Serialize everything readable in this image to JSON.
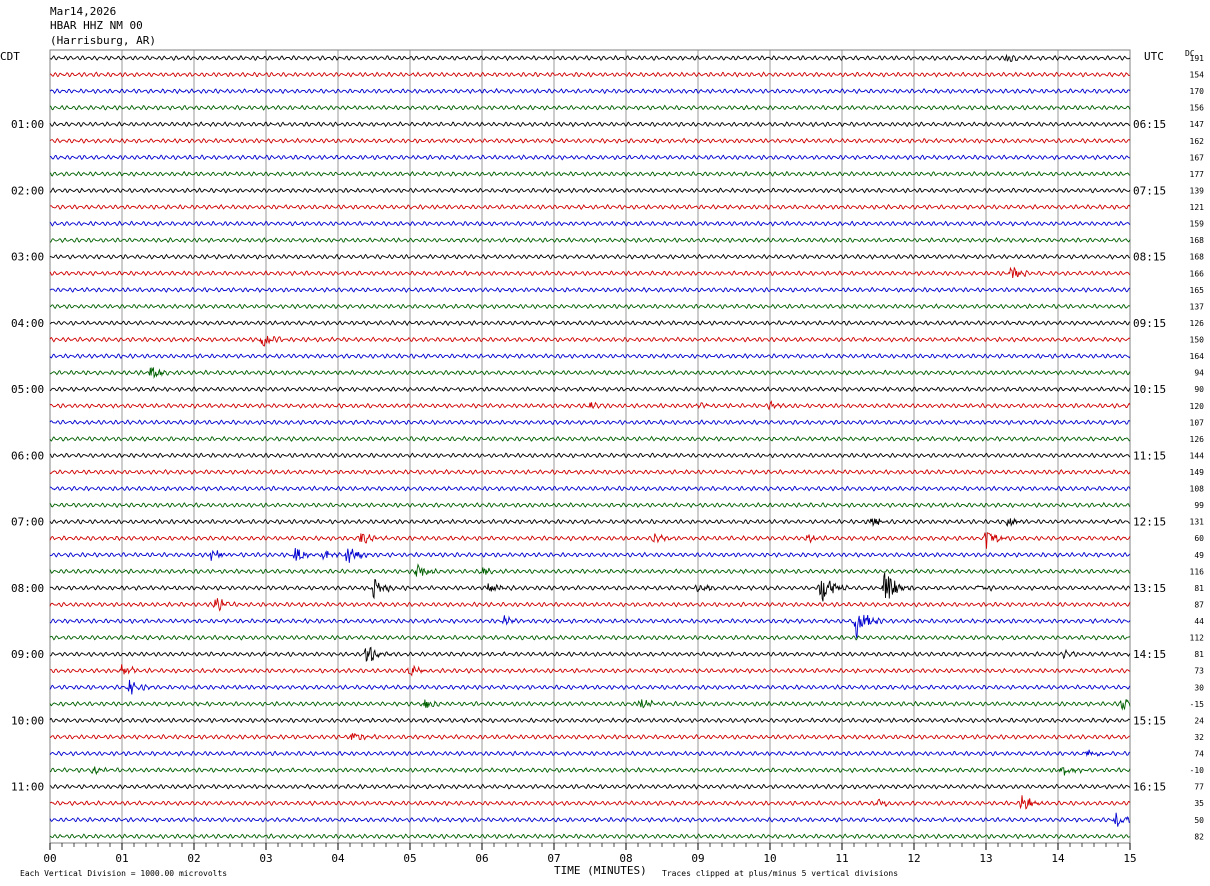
{
  "header": {
    "date": "Mar14,2026",
    "station": "HBAR HHZ NM 00",
    "location": "(Harrisburg, AR)"
  },
  "labels": {
    "left_timezone": "CDT",
    "right_timezone": "UTC",
    "dc_header": "DC",
    "xlabel": "TIME (MINUTES)",
    "footer_left": "Each Vertical Division = 1000.00 microvolts",
    "footer_right": "Traces clipped at plus/minus 5 vertical divisions"
  },
  "colors": {
    "cycle": [
      "#000000",
      "#d00000",
      "#0000d0",
      "#006000"
    ],
    "grid": "#808080"
  },
  "chart_data": {
    "type": "line",
    "title": "",
    "xlabel": "TIME (MINUTES)",
    "ylabel": "",
    "xlim": [
      0,
      15
    ],
    "x_ticks": [
      "00",
      "01",
      "02",
      "03",
      "04",
      "05",
      "06",
      "07",
      "08",
      "09",
      "10",
      "11",
      "12",
      "13",
      "14",
      "15"
    ],
    "row_count": 48,
    "left_hour_labels": [
      "01:00",
      "02:00",
      "03:00",
      "04:00",
      "05:00",
      "06:00",
      "07:00",
      "08:00",
      "09:00",
      "10:00",
      "11:00"
    ],
    "right_hour_labels": [
      "06:15",
      "07:15",
      "08:15",
      "09:15",
      "10:15",
      "11:15",
      "12:15",
      "13:15",
      "14:15",
      "15:15",
      "16:15"
    ],
    "dc_offsets": [
      "191",
      "154",
      "170",
      "156",
      "147",
      "162",
      "167",
      "177",
      "139",
      "121",
      "159",
      "168",
      "168",
      "166",
      "165",
      "137",
      "126",
      "150",
      "164",
      "94",
      "90",
      "120",
      "107",
      "126",
      "144",
      "149",
      "108",
      "99",
      "131",
      "60",
      "49",
      "116",
      "81",
      "87",
      "44",
      "112",
      "81",
      "73",
      "30",
      "-15",
      "24",
      "32",
      "74",
      "-10",
      "77",
      "35",
      "50",
      "82"
    ],
    "noise_amplitude": 0.22,
    "events": [
      {
        "row": 0,
        "minute": 13.3,
        "amplitude": 0.5
      },
      {
        "row": 13,
        "minute": 13.35,
        "amplitude": 0.8
      },
      {
        "row": 17,
        "minute": 2.95,
        "amplitude": 1.0
      },
      {
        "row": 19,
        "minute": 1.4,
        "amplitude": 0.9
      },
      {
        "row": 21,
        "minute": 7.5,
        "amplitude": 0.4
      },
      {
        "row": 21,
        "minute": 9.0,
        "amplitude": 0.4
      },
      {
        "row": 21,
        "minute": 10.0,
        "amplitude": 0.45
      },
      {
        "row": 28,
        "minute": 11.4,
        "amplitude": 0.6
      },
      {
        "row": 28,
        "minute": 13.3,
        "amplitude": 0.5
      },
      {
        "row": 29,
        "minute": 4.3,
        "amplitude": 0.9
      },
      {
        "row": 29,
        "minute": 8.4,
        "amplitude": 0.6
      },
      {
        "row": 29,
        "minute": 10.5,
        "amplitude": 0.5
      },
      {
        "row": 29,
        "minute": 13.0,
        "amplitude": 1.2
      },
      {
        "row": 30,
        "minute": 2.25,
        "amplitude": 1.0
      },
      {
        "row": 30,
        "minute": 3.4,
        "amplitude": 1.0
      },
      {
        "row": 30,
        "minute": 3.8,
        "amplitude": 0.8
      },
      {
        "row": 30,
        "minute": 4.1,
        "amplitude": 1.3
      },
      {
        "row": 31,
        "minute": 5.1,
        "amplitude": 1.0
      },
      {
        "row": 31,
        "minute": 6.0,
        "amplitude": 0.5
      },
      {
        "row": 32,
        "minute": 4.5,
        "amplitude": 1.4
      },
      {
        "row": 32,
        "minute": 6.1,
        "amplitude": 0.9
      },
      {
        "row": 32,
        "minute": 9.0,
        "amplitude": 0.6
      },
      {
        "row": 32,
        "minute": 10.7,
        "amplitude": 2.4
      },
      {
        "row": 32,
        "minute": 11.6,
        "amplitude": 2.2
      },
      {
        "row": 32,
        "minute": 12.9,
        "amplitude": 0.5
      },
      {
        "row": 33,
        "minute": 2.3,
        "amplitude": 0.9
      },
      {
        "row": 34,
        "minute": 6.3,
        "amplitude": 0.6
      },
      {
        "row": 34,
        "minute": 11.2,
        "amplitude": 2.3
      },
      {
        "row": 36,
        "minute": 4.4,
        "amplitude": 1.2
      },
      {
        "row": 36,
        "minute": 14.1,
        "amplitude": 0.5
      },
      {
        "row": 37,
        "minute": 1.0,
        "amplitude": 0.9
      },
      {
        "row": 37,
        "minute": 5.0,
        "amplitude": 0.7
      },
      {
        "row": 38,
        "minute": 1.1,
        "amplitude": 0.9
      },
      {
        "row": 39,
        "minute": 5.2,
        "amplitude": 0.7
      },
      {
        "row": 39,
        "minute": 8.2,
        "amplitude": 0.8
      },
      {
        "row": 39,
        "minute": 14.9,
        "amplitude": 1.1
      },
      {
        "row": 41,
        "minute": 4.2,
        "amplitude": 0.6
      },
      {
        "row": 42,
        "minute": 14.4,
        "amplitude": 0.6
      },
      {
        "row": 43,
        "minute": 0.6,
        "amplitude": 0.5
      },
      {
        "row": 43,
        "minute": 14.05,
        "amplitude": 0.9
      },
      {
        "row": 45,
        "minute": 11.5,
        "amplitude": 0.6
      },
      {
        "row": 45,
        "minute": 13.5,
        "amplitude": 1.2
      },
      {
        "row": 46,
        "minute": 14.8,
        "amplitude": 0.9
      }
    ]
  }
}
